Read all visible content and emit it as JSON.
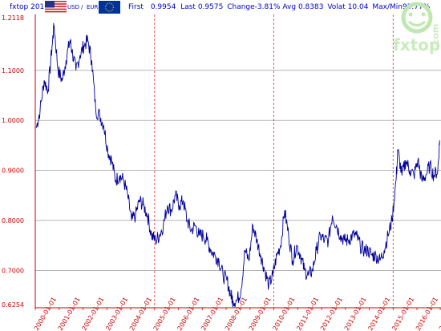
{
  "header": {
    "source": "fxtop 2016",
    "pair_base": "USD",
    "pair_sep": "/",
    "pair_quote": "EUR",
    "first_label": "First",
    "first_value": "0.9954",
    "last_label": "Last",
    "last_value": "0.9575",
    "change_label": "Change",
    "change_value": "-3.81%",
    "avg_label": "Avg",
    "avg_value": "0.8383",
    "volat_label": "Volat",
    "volat_value": "10.04",
    "maxmin_label": "Max/Min",
    "maxmin_value": "93.77%"
  },
  "logo": {
    "text": "fxtop",
    "suffix": ".com",
    "icon": "smiley-logo-icon"
  },
  "colors": {
    "line": "#000099",
    "axis": "#cc0000",
    "grid": "#888888",
    "header": "#0000cc"
  },
  "chart_data": {
    "type": "line",
    "title": "",
    "xlabel": "",
    "ylabel": "",
    "ylim": [
      0.6254,
      1.2118
    ],
    "ytick_labels": [
      "1.2118",
      "1.1000",
      "1.0000",
      "0.9000",
      "0.8000",
      "0.7000",
      "0.6254"
    ],
    "ytick_values": [
      1.2118,
      1.1,
      1.0,
      0.9,
      0.8,
      0.7,
      0.6254
    ],
    "xtick_labels": [
      "2000-01-01",
      "2001-01-01",
      "2002-01-01",
      "2003-01-01",
      "2004-01-01",
      "2005-01-01",
      "2006-01-01",
      "2007-01-01",
      "2008-01-01",
      "2009-01-01",
      "2010-01-01",
      "2011-01-01",
      "2012-01-01",
      "2013-01-01",
      "2014-01-01",
      "2015-01-01",
      "2016-01-01",
      "2016-12-22"
    ],
    "year_separators": [
      "2005-01-01",
      "2010-01-01",
      "2015-01-01"
    ],
    "series": [
      {
        "x": [
          "2000-01",
          "2000-03",
          "2000-05",
          "2000-07",
          "2000-09",
          "2000-10",
          "2000-12",
          "2001-02",
          "2001-04",
          "2001-06",
          "2001-07",
          "2001-09",
          "2001-11",
          "2002-01",
          "2002-03",
          "2002-05",
          "2002-07",
          "2002-09",
          "2002-11",
          "2003-01",
          "2003-03",
          "2003-05",
          "2003-07",
          "2003-09",
          "2003-11",
          "2004-01",
          "2004-03",
          "2004-05",
          "2004-07",
          "2004-09",
          "2004-11",
          "2005-01",
          "2005-03",
          "2005-05",
          "2005-07",
          "2005-09",
          "2005-11",
          "2006-01",
          "2006-03",
          "2006-05",
          "2006-07",
          "2006-09",
          "2006-11",
          "2007-01",
          "2007-03",
          "2007-05",
          "2007-07",
          "2007-09",
          "2007-11",
          "2008-01",
          "2008-03",
          "2008-04",
          "2008-06",
          "2008-08",
          "2008-10",
          "2008-12",
          "2009-02",
          "2009-04",
          "2009-06",
          "2009-08",
          "2009-10",
          "2009-12",
          "2010-02",
          "2010-04",
          "2010-06",
          "2010-08",
          "2010-10",
          "2010-12",
          "2011-02",
          "2011-04",
          "2011-06",
          "2011-08",
          "2011-10",
          "2011-12",
          "2012-02",
          "2012-04",
          "2012-06",
          "2012-08",
          "2012-10",
          "2012-12",
          "2013-02",
          "2013-04",
          "2013-06",
          "2013-08",
          "2013-10",
          "2013-12",
          "2014-02",
          "2014-04",
          "2014-06",
          "2014-08",
          "2014-10",
          "2014-12",
          "2015-02",
          "2015-03",
          "2015-05",
          "2015-07",
          "2015-09",
          "2015-11",
          "2016-01",
          "2016-03",
          "2016-05",
          "2016-07",
          "2016-09",
          "2016-11",
          "2016-12"
        ],
        "values": [
          0.985,
          1.02,
          1.08,
          1.06,
          1.15,
          1.19,
          1.1,
          1.08,
          1.12,
          1.16,
          1.14,
          1.1,
          1.13,
          1.15,
          1.16,
          1.12,
          1.02,
          1.01,
          0.99,
          0.94,
          0.92,
          0.88,
          0.89,
          0.88,
          0.85,
          0.8,
          0.81,
          0.84,
          0.83,
          0.81,
          0.77,
          0.76,
          0.77,
          0.79,
          0.83,
          0.82,
          0.85,
          0.83,
          0.84,
          0.8,
          0.78,
          0.79,
          0.77,
          0.77,
          0.76,
          0.74,
          0.73,
          0.72,
          0.69,
          0.68,
          0.65,
          0.64,
          0.64,
          0.66,
          0.74,
          0.72,
          0.79,
          0.76,
          0.73,
          0.7,
          0.67,
          0.69,
          0.73,
          0.75,
          0.82,
          0.77,
          0.72,
          0.75,
          0.73,
          0.7,
          0.69,
          0.7,
          0.74,
          0.77,
          0.76,
          0.76,
          0.81,
          0.79,
          0.77,
          0.76,
          0.76,
          0.77,
          0.77,
          0.75,
          0.74,
          0.74,
          0.73,
          0.73,
          0.72,
          0.74,
          0.77,
          0.8,
          0.88,
          0.94,
          0.89,
          0.92,
          0.9,
          0.89,
          0.92,
          0.88,
          0.89,
          0.91,
          0.89,
          0.9,
          0.96
        ]
      }
    ],
    "grid": true,
    "legend": "none"
  }
}
